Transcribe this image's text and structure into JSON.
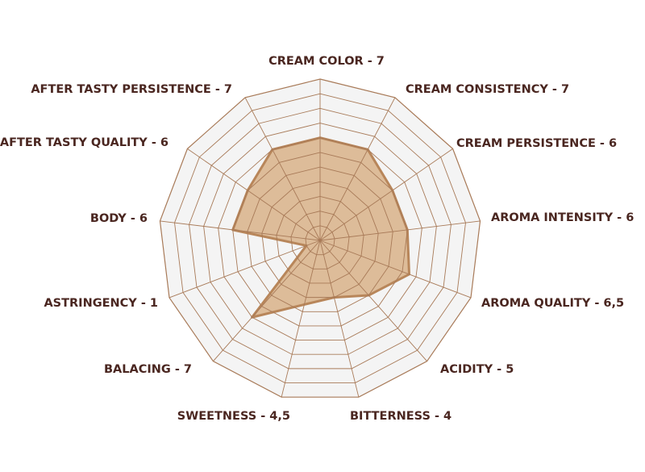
{
  "chart_data": {
    "type": "radar",
    "title": "",
    "categories": [
      "CREAM COLOR - 7",
      "CREAM CONSISTENCY - 7",
      "CREAM PERSISTENCE - 6",
      "AROMA INTENSITY - 6",
      "AROMA QUALITY - 6,5",
      "ACIDITY - 5",
      "BITTERNESS - 4",
      "SWEETNESS - 4,5",
      "BALACING - 7",
      "ASTRINGENCY - 1",
      "BODY - 6",
      "AFTER TASTY QUALITY - 6",
      "AFTER TASTY PERSISTENCE - 7"
    ],
    "series": [
      {
        "values": [
          7,
          7,
          6,
          6,
          6.5,
          5,
          4,
          4.5,
          7,
          1,
          6,
          6,
          7
        ]
      }
    ],
    "rlim": [
      0,
      11
    ],
    "grid": true,
    "colors": {
      "fill": "#d9b48c",
      "stroke": "#b8865a",
      "grid": "#a87a58",
      "background": "#f4f4f4",
      "label": "#4a2620"
    }
  }
}
